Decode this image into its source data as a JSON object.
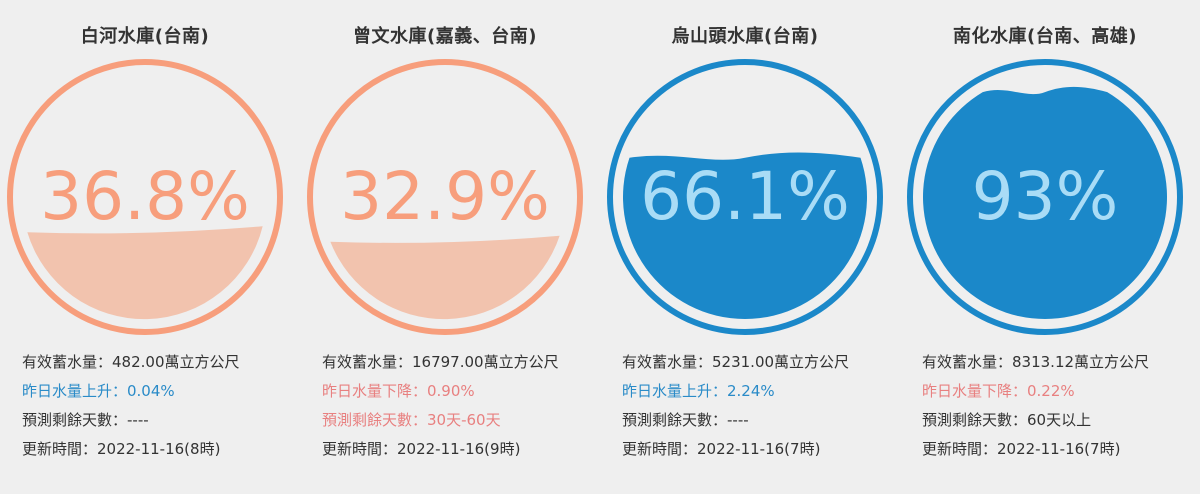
{
  "colors": {
    "orange_ring": "#f79e7c",
    "orange_water": "#f2c3ae",
    "orange_text": "#f79e7c",
    "blue_ring": "#1b88c9",
    "blue_water": "#1b88c9",
    "blue_text": "#a9dcf6",
    "rise_text": "#2a8bc8",
    "fall_text": "#e88080",
    "background": "#efefef"
  },
  "reservoirs": [
    {
      "name": "白河水庫(台南)",
      "percent_label": "36.8%",
      "level": 0.368,
      "theme": "orange",
      "storage": "有效蓄水量：482.00萬立方公尺",
      "change": "昨日水量上升：0.04%",
      "change_dir": "rise",
      "days": "預測剩餘天數：----",
      "days_highlight": false,
      "updated": "更新時間：2022-11-16(8時)"
    },
    {
      "name": "曾文水庫(嘉義、台南)",
      "percent_label": "32.9%",
      "level": 0.329,
      "theme": "orange",
      "storage": "有效蓄水量：16797.00萬立方公尺",
      "change": "昨日水量下降：0.90%",
      "change_dir": "fall",
      "days": "預測剩餘天數：30天-60天",
      "days_highlight": true,
      "updated": "更新時間：2022-11-16(9時)"
    },
    {
      "name": "烏山頭水庫(台南)",
      "percent_label": "66.1%",
      "level": 0.661,
      "theme": "blue",
      "storage": "有效蓄水量：5231.00萬立方公尺",
      "change": "昨日水量上升：2.24%",
      "change_dir": "rise",
      "days": "預測剩餘天數：----",
      "days_highlight": false,
      "updated": "更新時間：2022-11-16(7時)"
    },
    {
      "name": "南化水庫(台南、高雄)",
      "percent_label": "93%",
      "level": 0.93,
      "theme": "blue",
      "storage": "有效蓄水量：8313.12萬立方公尺",
      "change": "昨日水量下降：0.22%",
      "change_dir": "fall",
      "days": "預測剩餘天數：60天以上",
      "days_highlight": false,
      "updated": "更新時間：2022-11-16(7時)"
    }
  ]
}
